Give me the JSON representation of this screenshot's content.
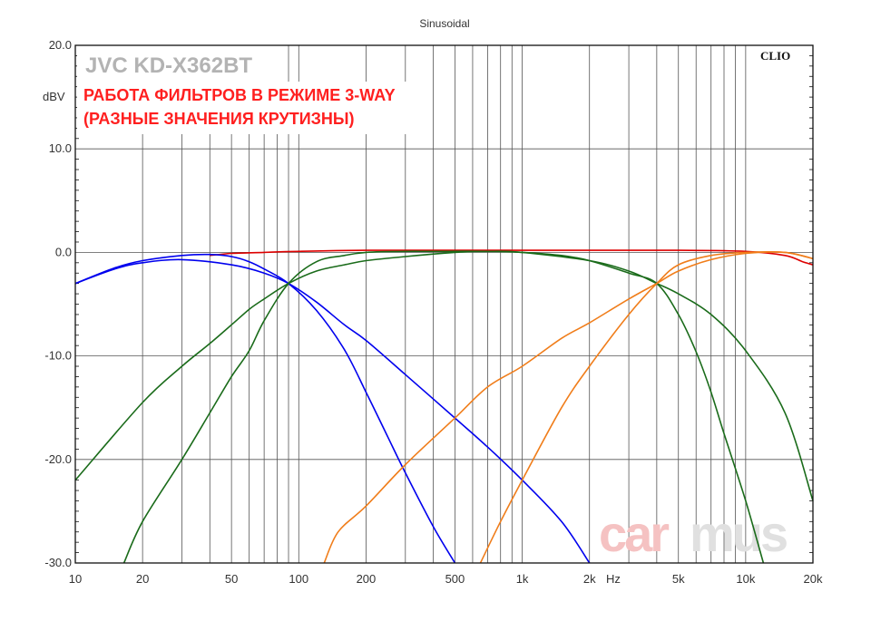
{
  "chart_data": {
    "type": "line",
    "title": "Sinusoidal",
    "ylabel": "dBV",
    "xlabel": "Hz",
    "xscale": "log",
    "xlim": [
      10,
      20000
    ],
    "ylim": [
      -30,
      20
    ],
    "grid": true,
    "y_ticks": [
      {
        "v": 20,
        "label": "20.0"
      },
      {
        "v": 10,
        "label": "10.0"
      },
      {
        "v": 0,
        "label": "0.0"
      },
      {
        "v": -10,
        "label": "-10.0"
      },
      {
        "v": -20,
        "label": "-20.0"
      },
      {
        "v": -30,
        "label": "-30.0"
      }
    ],
    "x_ticks": [
      {
        "v": 10,
        "label": "10"
      },
      {
        "v": 20,
        "label": "20"
      },
      {
        "v": 50,
        "label": "50"
      },
      {
        "v": 100,
        "label": "100"
      },
      {
        "v": 200,
        "label": "200"
      },
      {
        "v": 500,
        "label": "500"
      },
      {
        "v": 1000,
        "label": "1k"
      },
      {
        "v": 2000,
        "label": "2k"
      },
      {
        "v": 5000,
        "label": "5k"
      },
      {
        "v": 10000,
        "label": "10k"
      },
      {
        "v": 20000,
        "label": "20k"
      }
    ],
    "annotations": {
      "brand": "JVC KD-X362BT",
      "subtitle_line1": "РАБОТА ФИЛЬТРОВ В РЕЖИМЕ 3-WAY",
      "subtitle_line2": "(РАЗНЫЕ ЗНАЧЕНИЯ КРУТИЗНЫ)",
      "software": "CLIO",
      "watermark_a": "car",
      "watermark_b": "mus"
    },
    "series": [
      {
        "color": "#dd0000",
        "x": [
          40,
          50,
          70,
          100,
          200,
          500,
          1000,
          2000,
          5000,
          10000,
          15000,
          18000,
          20000
        ],
        "y": [
          -0.3,
          -0.1,
          0.0,
          0.1,
          0.2,
          0.2,
          0.2,
          0.2,
          0.2,
          0.1,
          -0.3,
          -0.9,
          -1.2
        ]
      },
      {
        "color": "#0000ee",
        "x": [
          10,
          15,
          20,
          30,
          40,
          50,
          60,
          70,
          90,
          120,
          160,
          200,
          250,
          300,
          400,
          500
        ],
        "y": [
          -3.0,
          -1.5,
          -0.8,
          -0.3,
          -0.2,
          -0.4,
          -0.9,
          -1.6,
          -3.0,
          -5.6,
          -9.4,
          -13.5,
          -17.8,
          -21.3,
          -26.5,
          -30.0
        ]
      },
      {
        "color": "#0000ee",
        "x": [
          10,
          15,
          20,
          30,
          50,
          70,
          90,
          120,
          160,
          200,
          300,
          500,
          700,
          1000,
          1500,
          2000
        ],
        "y": [
          -3.0,
          -1.6,
          -1.0,
          -0.7,
          -1.2,
          -2.0,
          -3.0,
          -4.8,
          -7.0,
          -8.5,
          -11.8,
          -16.0,
          -18.8,
          -22.0,
          -26.0,
          -30.0
        ]
      },
      {
        "color": "#1a6b1a",
        "x": [
          16.5,
          20,
          30,
          40,
          50,
          60,
          70,
          90,
          120,
          160,
          200,
          300,
          400,
          700,
          1000,
          1500,
          2000,
          3000,
          4000,
          5000,
          6000,
          7000,
          8000,
          10000,
          12000
        ],
        "y": [
          -30.0,
          -26.0,
          -20.0,
          -15.5,
          -12.0,
          -9.5,
          -6.6,
          -3.0,
          -0.9,
          -0.3,
          0.0,
          0.1,
          0.1,
          0.1,
          0.0,
          -0.3,
          -0.8,
          -2.0,
          -3.0,
          -6.0,
          -9.6,
          -13.5,
          -17.5,
          -24.0,
          -30.0
        ]
      },
      {
        "color": "#1a6b1a",
        "x": [
          10,
          20,
          30,
          40,
          50,
          60,
          70,
          90,
          120,
          160,
          200,
          300,
          500,
          700,
          1000,
          2000,
          3000,
          4000,
          5000,
          7000,
          10000,
          15000,
          20000
        ],
        "y": [
          -22.0,
          -14.5,
          -11.0,
          -8.8,
          -7.0,
          -5.5,
          -4.5,
          -3.0,
          -1.8,
          -1.2,
          -0.8,
          -0.4,
          0.0,
          0.1,
          0.0,
          -0.8,
          -1.8,
          -3.0,
          -4.0,
          -6.0,
          -9.5,
          -15.5,
          -24.0
        ]
      },
      {
        "color": "#f07d1a",
        "x": [
          130,
          150,
          200,
          300,
          500,
          700,
          1000,
          1500,
          2000,
          3000,
          4000,
          5000,
          7000,
          10000,
          15000,
          20000
        ],
        "y": [
          -30.0,
          -27.0,
          -24.5,
          -20.5,
          -16.0,
          -13.0,
          -11.0,
          -8.3,
          -6.8,
          -4.5,
          -3.0,
          -1.8,
          -0.7,
          -0.1,
          0.0,
          -0.6
        ]
      },
      {
        "color": "#f07d1a",
        "x": [
          650,
          800,
          1000,
          1500,
          2000,
          3000,
          4000,
          5000,
          7000,
          10000,
          15000,
          20000
        ],
        "y": [
          -30.0,
          -26.0,
          -22.0,
          -15.0,
          -11.0,
          -6.0,
          -3.0,
          -1.2,
          -0.3,
          0.0,
          0.0,
          -0.6
        ]
      }
    ]
  },
  "colors": {
    "grid": "#555555",
    "frame": "#111111",
    "watermark_a": "#f5c2c2",
    "watermark_b": "#e0e0e0"
  }
}
